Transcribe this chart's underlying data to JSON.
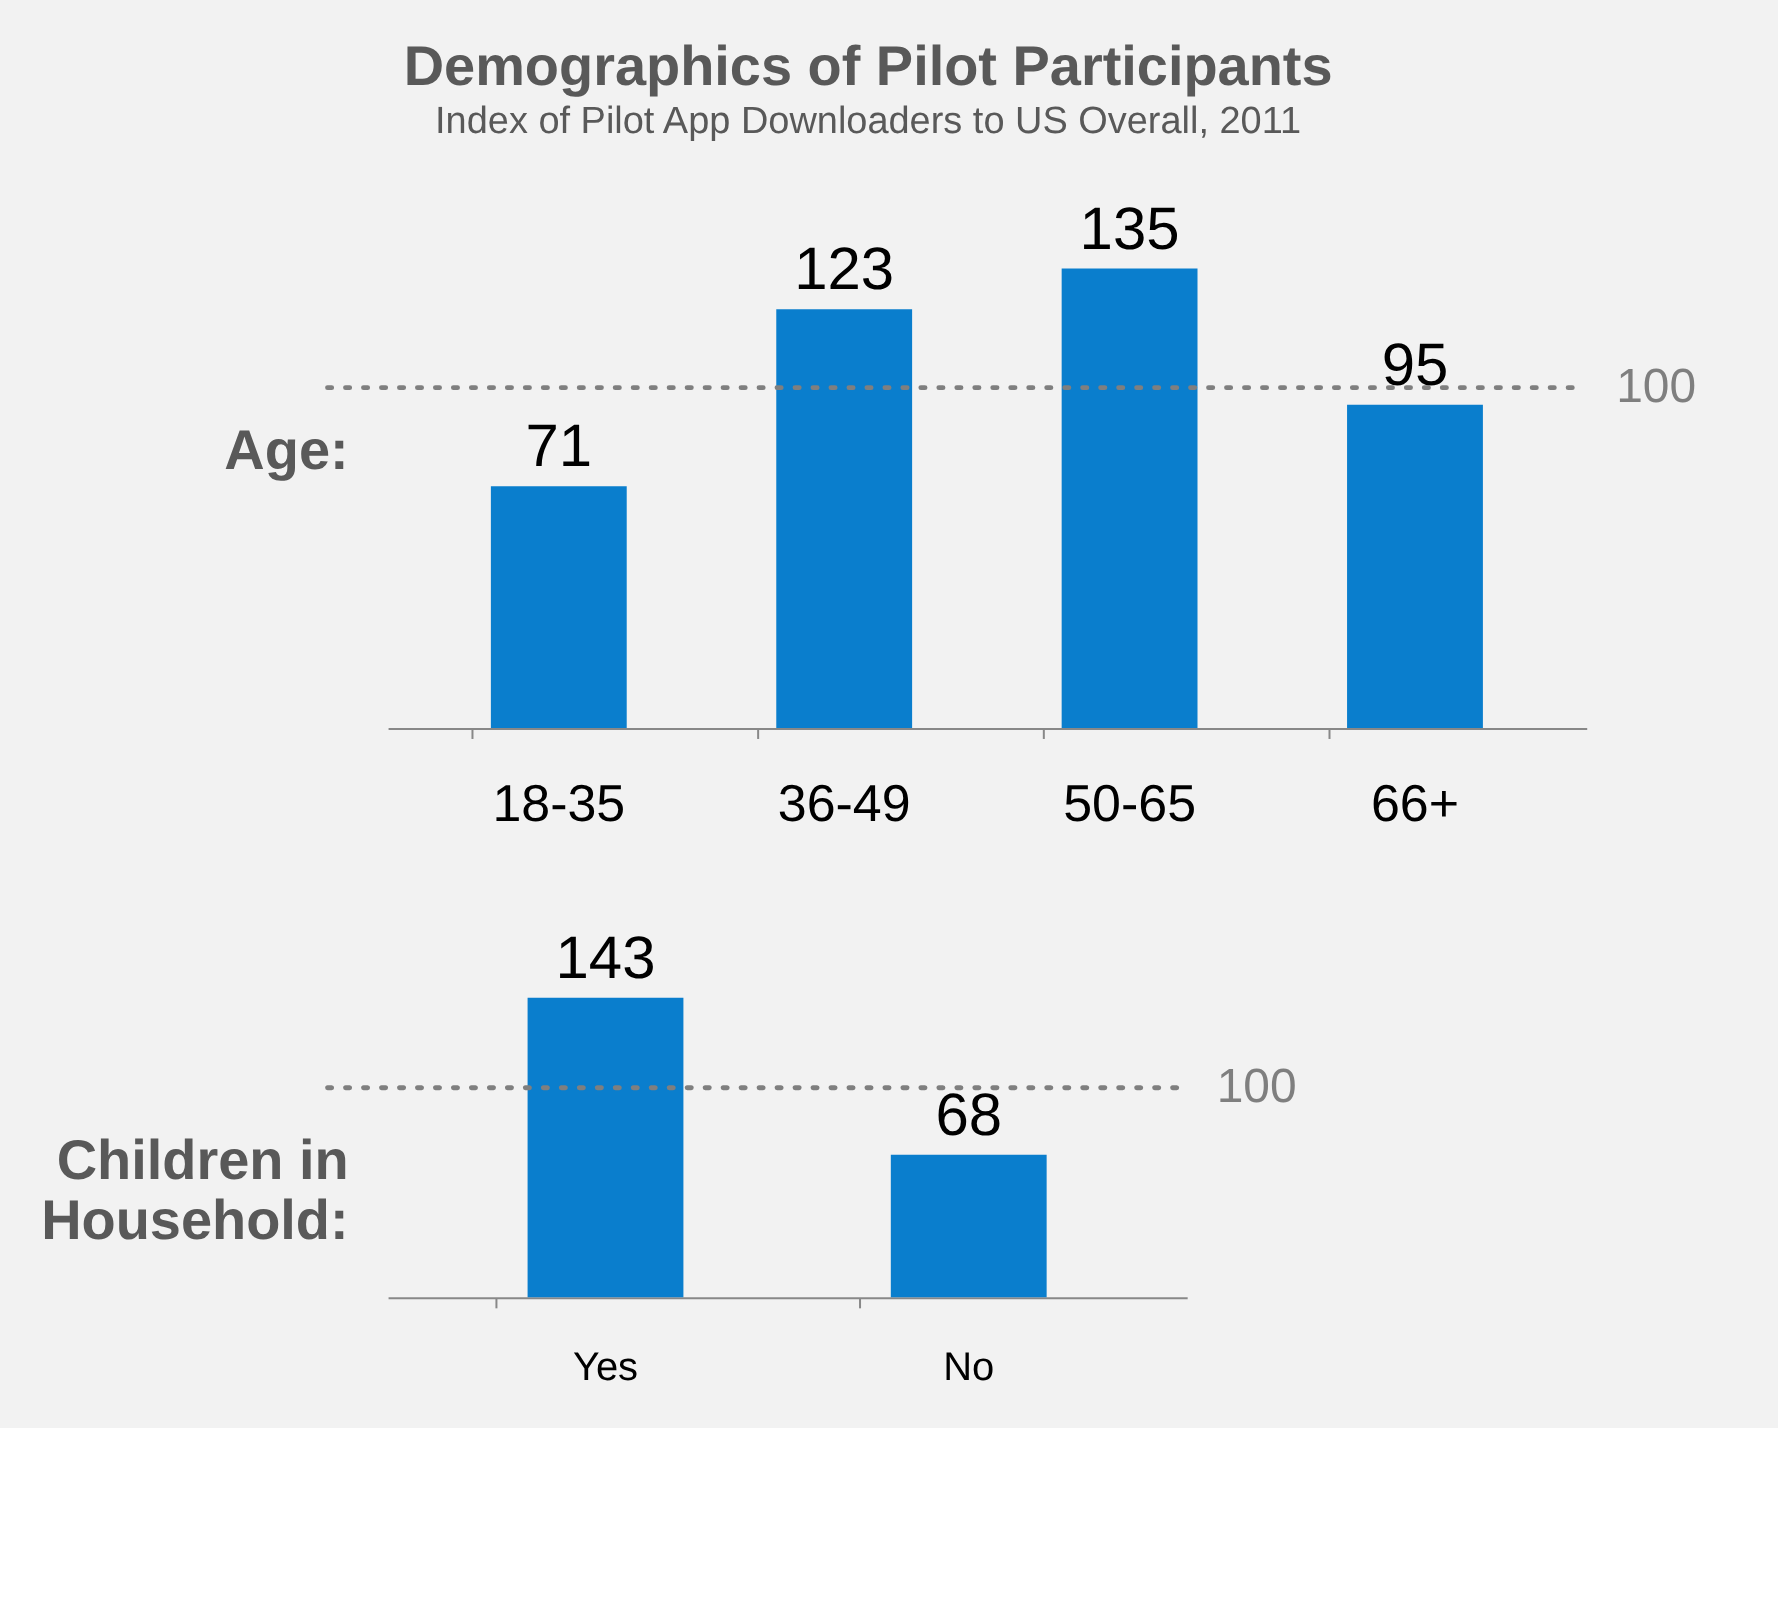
{
  "chart_data": [
    {
      "type": "bar",
      "title": "Demographics of Pilot Participants",
      "subtitle": "Index of Pilot App Downloaders to US Overall, 2011",
      "ylabel": "Age:",
      "categories": [
        "18-35",
        "36-49",
        "50-65",
        "66+"
      ],
      "values": [
        71,
        123,
        135,
        95
      ],
      "color": "#0a7ecd",
      "data_labels": true,
      "tick_labels": "x",
      "ref_lines": [
        {
          "axis": "y",
          "value": 100,
          "label": "100",
          "line_style": "dotted",
          "color": "#7f7f7f"
        }
      ]
    },
    {
      "type": "bar",
      "ylabel": "Children in Household:",
      "categories": [
        "Yes",
        "No"
      ],
      "values": [
        143,
        68
      ],
      "color": "#0a7ecd",
      "data_labels": true,
      "tick_labels": "x",
      "ref_lines": [
        {
          "axis": "y",
          "value": 100,
          "label": "100",
          "line_style": "dotted",
          "color": "#7f7f7f"
        }
      ]
    }
  ]
}
